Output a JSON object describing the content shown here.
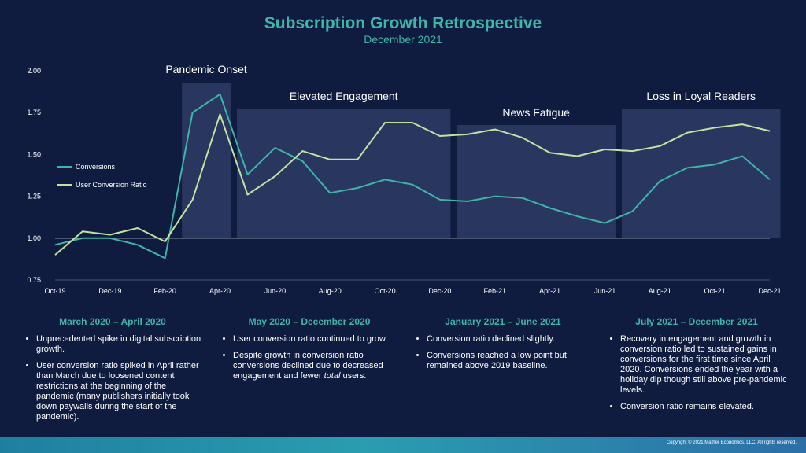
{
  "header": {
    "title": "Subscription Growth Retrospective",
    "subtitle": "December 2021"
  },
  "chart_data": {
    "type": "line",
    "categories": [
      "Oct-19",
      "Nov-19",
      "Dec-19",
      "Jan-20",
      "Feb-20",
      "Mar-20",
      "Apr-20",
      "May-20",
      "Jun-20",
      "Jul-20",
      "Aug-20",
      "Sep-20",
      "Oct-20",
      "Nov-20",
      "Dec-20",
      "Jan-21",
      "Feb-21",
      "Mar-21",
      "Apr-21",
      "May-21",
      "Jun-21",
      "Jul-21",
      "Aug-21",
      "Sep-21",
      "Oct-21",
      "Nov-21",
      "Dec-21"
    ],
    "tick_labels": [
      "Oct-19",
      "Dec-19",
      "Feb-20",
      "Apr-20",
      "Jun-20",
      "Aug-20",
      "Oct-20",
      "Dec-20",
      "Feb-21",
      "Apr-21",
      "Jun-21",
      "Aug-21",
      "Oct-21",
      "Dec-21"
    ],
    "ylim": [
      0.75,
      2.0
    ],
    "yticks": [
      "0.75",
      "1.00",
      "1.25",
      "1.50",
      "1.75",
      "2.00"
    ],
    "series": [
      {
        "name": "Conversions",
        "color": "#3fb4a8",
        "values": [
          0.96,
          1.0,
          1.0,
          0.96,
          0.88,
          1.75,
          1.86,
          1.38,
          1.54,
          1.46,
          1.27,
          1.3,
          1.35,
          1.32,
          1.23,
          1.22,
          1.25,
          1.24,
          1.18,
          1.13,
          1.09,
          1.16,
          1.34,
          1.42,
          1.44,
          1.49,
          1.35
        ]
      },
      {
        "name": "User Conversion Ratio",
        "color": "#c4e3a0",
        "values": [
          0.9,
          1.04,
          1.02,
          1.06,
          0.98,
          1.23,
          1.74,
          1.26,
          1.37,
          1.52,
          1.47,
          1.47,
          1.69,
          1.69,
          1.61,
          1.62,
          1.65,
          1.6,
          1.51,
          1.49,
          1.53,
          1.52,
          1.55,
          1.63,
          1.66,
          1.68,
          1.64
        ]
      }
    ],
    "baseline": 1.0,
    "legend": "left",
    "periods": [
      {
        "label": "Pandemic Onset",
        "start": "Mar-20",
        "end": "Apr-20"
      },
      {
        "label": "Elevated Engagement",
        "start": "May-20",
        "end": "Dec-20"
      },
      {
        "label": "News Fatigue",
        "start": "Jan-21",
        "end": "Jun-21"
      },
      {
        "label": "Loss in Loyal Readers",
        "start": "Jul-21",
        "end": "Dec-21"
      }
    ]
  },
  "notes": [
    {
      "heading": "March 2020 – April 2020",
      "bullets": [
        "Unprecedented spike in digital subscription growth.",
        "User conversion ratio spiked in April rather than March due to loosened content restrictions at the beginning of the pandemic (many publishers initially took down paywalls during the start of the pandemic)."
      ]
    },
    {
      "heading": "May 2020 – December 2020",
      "bullets": [
        "User conversion ratio continued to grow.",
        "Despite growth in conversion ratio conversions declined due to decreased engagement and fewer total users."
      ]
    },
    {
      "heading": "January 2021 – June 2021",
      "bullets": [
        "Conversion ratio declined slightly.",
        "Conversions reached a low point but remained above 2019 baseline."
      ]
    },
    {
      "heading": "July 2021 – December 2021",
      "bullets": [
        "Recovery in engagement and growth in conversion ratio led to sustained gains in conversions for the first time since April 2020. Conversions ended the year with a holiday dip though still above pre-pandemic levels.",
        "Conversion ratio remains elevated."
      ]
    }
  ],
  "footer": {
    "copyright": "Copyright © 2021 Mather Economics, LLC. All rights reserved."
  }
}
